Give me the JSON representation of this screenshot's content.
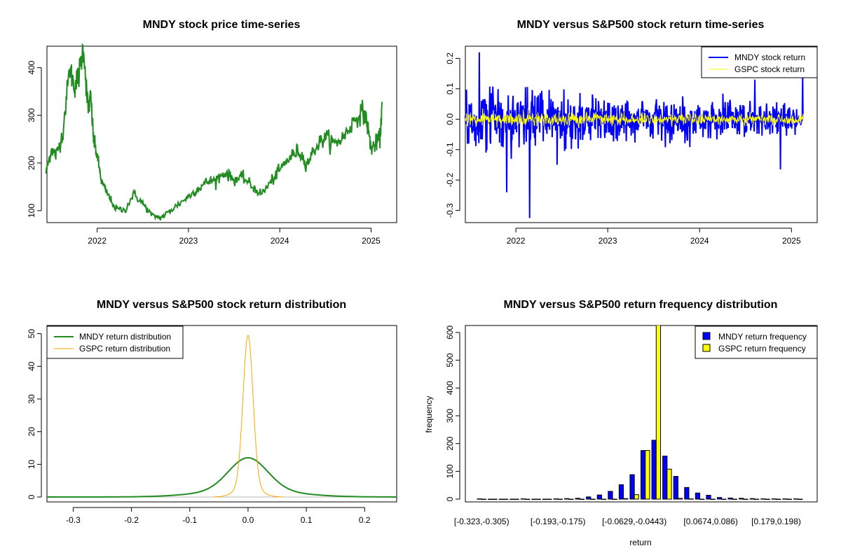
{
  "chart_data": [
    {
      "type": "line",
      "title": "MNDY stock price time-series",
      "xlabel": "",
      "ylabel": "",
      "xlim": [
        2021.45,
        2025.28
      ],
      "ylim": [
        75,
        445
      ],
      "x_tick_labels": [
        "2022",
        "2023",
        "2024",
        "2025"
      ],
      "x_tick_values": [
        2022,
        2023,
        2024,
        2025
      ],
      "y_ticks": [
        100,
        200,
        300,
        400
      ],
      "series": [
        {
          "name": "MNDY",
          "color": "#228B22",
          "x": [
            2021.44,
            2021.5,
            2021.55,
            2021.62,
            2021.7,
            2021.75,
            2021.8,
            2021.85,
            2021.9,
            2021.93,
            2021.96,
            2022.0,
            2022.05,
            2022.1,
            2022.2,
            2022.3,
            2022.4,
            2022.5,
            2022.6,
            2022.7,
            2022.8,
            2022.9,
            2023.0,
            2023.1,
            2023.2,
            2023.3,
            2023.4,
            2023.5,
            2023.6,
            2023.7,
            2023.8,
            2023.9,
            2024.0,
            2024.1,
            2024.2,
            2024.3,
            2024.4,
            2024.5,
            2024.6,
            2024.7,
            2024.8,
            2024.9,
            2024.95,
            2025.0,
            2025.05,
            2025.1,
            2025.12
          ],
          "values": [
            180,
            230,
            215,
            260,
            400,
            360,
            385,
            445,
            310,
            340,
            250,
            215,
            160,
            140,
            105,
            100,
            135,
            115,
            90,
            85,
            100,
            115,
            130,
            145,
            160,
            165,
            180,
            165,
            170,
            150,
            135,
            160,
            185,
            210,
            225,
            200,
            235,
            255,
            240,
            255,
            285,
            310,
            290,
            230,
            240,
            255,
            325
          ]
        }
      ]
    },
    {
      "type": "line",
      "title": "MNDY versus S&P500 stock return time-series",
      "xlabel": "",
      "ylabel": "",
      "xlim": [
        2021.45,
        2025.28
      ],
      "ylim": [
        -0.34,
        0.24
      ],
      "x_tick_labels": [
        "2022",
        "2023",
        "2024",
        "2025"
      ],
      "x_tick_values": [
        2022,
        2023,
        2024,
        2025
      ],
      "y_ticks": [
        -0.3,
        -0.2,
        -0.1,
        0.0,
        0.1,
        0.2
      ],
      "y_tick_labels": [
        "-0.3",
        "-0.2",
        "-0.1",
        "0.0",
        "0.1",
        "0.2"
      ],
      "legend": {
        "position": "top-right",
        "entries": [
          "MNDY stock return",
          "GSPC stock return"
        ]
      },
      "series": [
        {
          "name": "MNDY stock return",
          "color": "#0000FF",
          "x_range": [
            2021.45,
            2025.13
          ],
          "amplitude_start": 0.08,
          "amplitude_end": 0.035,
          "spikes": [
            [
              2021.6,
              0.22
            ],
            [
              2021.9,
              -0.24
            ],
            [
              2022.15,
              -0.325
            ],
            [
              2021.95,
              -0.13
            ],
            [
              2022.45,
              -0.15
            ],
            [
              2024.88,
              -0.165
            ],
            [
              2025.12,
              0.15
            ],
            [
              2024.6,
              0.13
            ]
          ]
        },
        {
          "name": "GSPC stock return",
          "color": "#FFFF00",
          "x_range": [
            2021.45,
            2025.13
          ],
          "amplitude_start": 0.012,
          "amplitude_end": 0.008
        }
      ]
    },
    {
      "type": "line",
      "title": "MNDY versus S&P500 stock return distribution",
      "xlabel": "",
      "ylabel": "",
      "xlim": [
        -0.345,
        0.255
      ],
      "ylim": [
        -1.5,
        52.5
      ],
      "x_ticks": [
        -0.3,
        -0.2,
        -0.1,
        0.0,
        0.1,
        0.2
      ],
      "x_tick_labels": [
        "-0.3",
        "-0.2",
        "-0.1",
        "0.0",
        "0.1",
        "0.2"
      ],
      "y_ticks": [
        0,
        10,
        20,
        30,
        40,
        50
      ],
      "legend": {
        "position": "top-left",
        "entries": [
          "MNDY return distribution",
          "GSPC return distribution"
        ]
      },
      "series": [
        {
          "name": "MNDY return distribution",
          "color": "#228B22",
          "peak": 12,
          "center": 0.0,
          "sd": 0.033
        },
        {
          "name": "GSPC return distribution",
          "color": "#FFA500",
          "peak": 49.5,
          "center": 0.0,
          "sd": 0.0085
        }
      ]
    },
    {
      "type": "bar",
      "title": "MNDY versus S&P500 return frequency distribution",
      "xlabel": "return",
      "ylabel": "frequency",
      "ylim": [
        -10,
        625
      ],
      "y_ticks": [
        0,
        100,
        200,
        300,
        400,
        500,
        600
      ],
      "x_tick_labels": [
        "[-0.323,-0.305)",
        "[-0.193,-0.175)",
        "[-0.0629,-0.0443)",
        "[0.0674,0.086)",
        "[0.179,0.198)"
      ],
      "x_tick_indices": [
        0,
        7,
        14,
        21,
        27
      ],
      "legend": {
        "position": "top-right",
        "entries": [
          "MNDY return frequency",
          "GSPC return frequency"
        ]
      },
      "series": [
        {
          "name": "MNDY return frequency",
          "color": "#0000FF",
          "values": [
            1,
            0,
            0,
            0,
            1,
            0,
            0,
            1,
            2,
            3,
            8,
            15,
            28,
            52,
            88,
            175,
            212,
            155,
            82,
            42,
            22,
            14,
            6,
            4,
            3,
            2,
            1,
            1,
            1,
            1
          ]
        },
        {
          "name": "GSPC return frequency",
          "color": "#FFFF00",
          "values": [
            0,
            0,
            0,
            0,
            0,
            0,
            0,
            0,
            0,
            0,
            0,
            0,
            0,
            2,
            16,
            175,
            630,
            108,
            3,
            1,
            0,
            0,
            0,
            0,
            0,
            0,
            0,
            0,
            0,
            0
          ]
        }
      ]
    }
  ]
}
